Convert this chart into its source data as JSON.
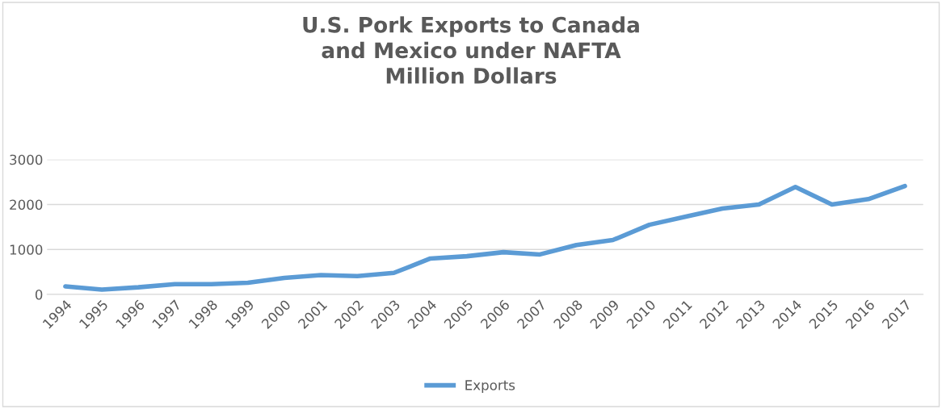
{
  "chart_data": {
    "type": "line",
    "title": "U.S. Pork Exports to Canada\nand Mexico under NAFTA\nMillion Dollars",
    "categories": [
      "1994",
      "1995",
      "1996",
      "1997",
      "1998",
      "1999",
      "2000",
      "2001",
      "2002",
      "2003",
      "2004",
      "2005",
      "2006",
      "2007",
      "2008",
      "2009",
      "2010",
      "2011",
      "2012",
      "2013",
      "2014",
      "2015",
      "2016",
      "2017"
    ],
    "series": [
      {
        "name": "Exports",
        "color": "#5b9bd5",
        "values": [
          180,
          110,
          160,
          230,
          230,
          260,
          370,
          430,
          410,
          480,
          800,
          850,
          940,
          890,
          1100,
          1210,
          1550,
          1730,
          1910,
          2000,
          2390,
          2000,
          2120,
          2410
        ]
      }
    ],
    "ylim": [
      0,
      3000
    ],
    "yticks": [
      0,
      1000,
      2000,
      3000
    ],
    "grid": "y",
    "legend": "bottom",
    "marker": "none",
    "line_style": "solid"
  }
}
